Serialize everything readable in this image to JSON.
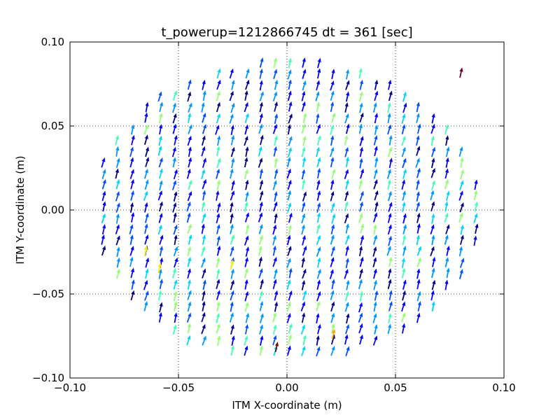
{
  "chart_data": {
    "type": "quiver",
    "title": "t_powerup=1212866745 dt = 361 [sec]",
    "xlabel": "ITM X-coordinate (m)",
    "ylabel": "ITM Y-coordinate (m)",
    "xlim": [
      -0.1,
      0.1
    ],
    "ylim": [
      -0.1,
      0.1
    ],
    "xticks": [
      -0.1,
      -0.05,
      0.0,
      0.05,
      0.1
    ],
    "yticks": [
      -0.1,
      -0.05,
      0.0,
      0.05,
      0.1
    ],
    "xtick_labels": [
      "−0.10",
      "−0.05",
      "0.00",
      "0.05",
      "0.10"
    ],
    "ytick_labels": [
      "−0.10",
      "−0.05",
      "0.00",
      "0.05",
      "0.10"
    ],
    "grid": true,
    "grid_style": "dotted",
    "colormap": "jet",
    "field": {
      "description": "arrows sampled on a grid inside a circular aperture, pointing roughly upward",
      "grid_spacing": 0.0066,
      "aperture_radius": 0.0895,
      "direction_deg": 75
    },
    "highlighted_arrows": [
      {
        "x": -0.0048,
        "y": -0.0815,
        "color": "#800000"
      },
      {
        "x": 0.0214,
        "y": -0.0738,
        "color": "#ffa500"
      },
      {
        "x": -0.0254,
        "y": -0.0325,
        "color": "#ffee00"
      },
      {
        "x": -0.0651,
        "y": -0.0244,
        "color": "#f0f000"
      },
      {
        "x": -0.0587,
        "y": -0.0345,
        "color": "#ffe000"
      },
      {
        "x": 0.0802,
        "y": 0.0818,
        "color": "#6a0020"
      }
    ],
    "colors": {
      "dark_blue": "#00008b",
      "blue": "#0000ff",
      "mid_blue": "#0050ff",
      "light_blue": "#0096ff",
      "cyan": "#00d4ff",
      "aqua": "#40ffb0",
      "green": "#90ff70"
    }
  }
}
